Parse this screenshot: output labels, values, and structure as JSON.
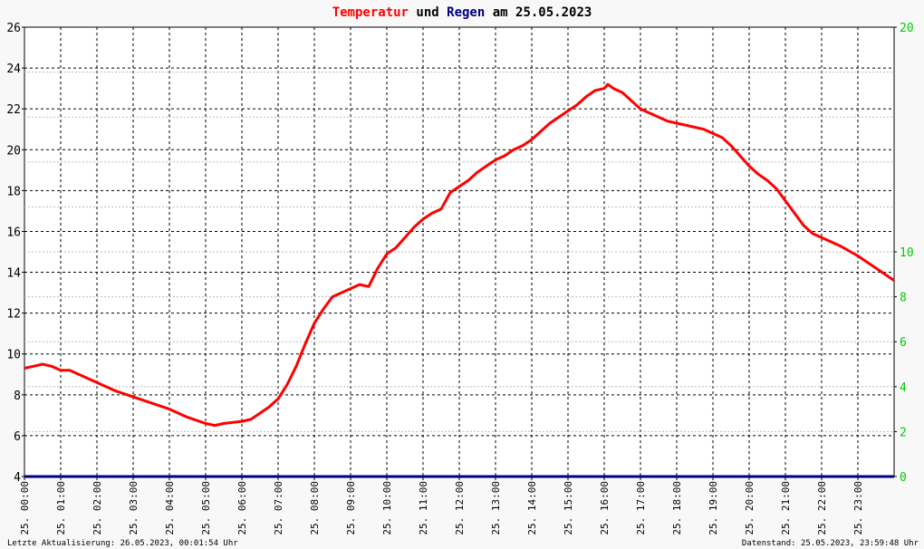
{
  "colors": {
    "temperature": "#ff0000",
    "rain": "#000080",
    "left_axis_text": "#000000",
    "right_axis_text": "#00cc00",
    "grid": "#000000",
    "background": "#ffffff",
    "page": "#f8f8f8"
  },
  "chart_data": {
    "type": "line",
    "title": "",
    "title_parts": [
      {
        "text": "Temperatur",
        "color": "#ff0000"
      },
      {
        "text": " und ",
        "color": "#000000"
      },
      {
        "text": "Regen",
        "color": "#000080"
      },
      {
        "text": " am 25.05.2023",
        "color": "#000000"
      }
    ],
    "xlabel": "",
    "ylabel": "",
    "x_unit": "hour of day",
    "xlim": [
      0,
      24
    ],
    "ylim": [
      4,
      26
    ],
    "y2lim": [
      0,
      20
    ],
    "yticks": [
      "4",
      "6",
      "8",
      "10",
      "12",
      "14",
      "16",
      "18",
      "20",
      "22",
      "24",
      "26"
    ],
    "y2ticks": [
      "0",
      "2",
      "4",
      "6",
      "8",
      "10",
      "12",
      "14",
      "16",
      "18",
      "20"
    ],
    "y2ticks_visible": [
      "0",
      "2",
      "4",
      "6",
      "8",
      "10",
      "20"
    ],
    "xtick_labels": [
      "25. 00:00",
      "25. 01:00",
      "25. 02:00",
      "25. 03:00",
      "25. 04:00",
      "25. 05:00",
      "25. 06:00",
      "25. 07:00",
      "25. 08:00",
      "25. 09:00",
      "25. 10:00",
      "25. 11:00",
      "25. 12:00",
      "25. 13:00",
      "25. 14:00",
      "25. 15:00",
      "25. 16:00",
      "25. 17:00",
      "25. 18:00",
      "25. 19:00",
      "25. 20:00",
      "25. 21:00",
      "25. 22:00",
      "25. 23:00"
    ],
    "grid": true,
    "series": [
      {
        "name": "Temperatur",
        "axis": "left",
        "x": [
          0.0,
          0.25,
          0.5,
          0.75,
          1.0,
          1.25,
          1.5,
          2.0,
          2.5,
          3.0,
          3.5,
          4.0,
          4.5,
          5.0,
          5.25,
          5.5,
          6.0,
          6.25,
          6.5,
          6.75,
          7.0,
          7.25,
          7.5,
          7.75,
          8.0,
          8.25,
          8.5,
          8.75,
          9.0,
          9.25,
          9.5,
          9.75,
          10.0,
          10.25,
          10.5,
          10.75,
          11.0,
          11.25,
          11.5,
          11.75,
          12.0,
          12.25,
          12.5,
          12.75,
          13.0,
          13.25,
          13.5,
          13.75,
          14.0,
          14.25,
          14.5,
          14.75,
          15.0,
          15.25,
          15.5,
          15.75,
          16.0,
          16.1,
          16.25,
          16.5,
          16.75,
          17.0,
          17.25,
          17.5,
          17.75,
          18.0,
          18.25,
          18.5,
          18.75,
          19.0,
          19.25,
          19.5,
          19.75,
          20.0,
          20.25,
          20.5,
          20.75,
          21.0,
          21.25,
          21.5,
          21.75,
          22.0,
          22.5,
          23.0,
          23.5,
          24.0
        ],
        "values": [
          9.3,
          9.4,
          9.5,
          9.4,
          9.2,
          9.2,
          9.0,
          8.6,
          8.2,
          7.9,
          7.6,
          7.3,
          6.9,
          6.6,
          6.5,
          6.6,
          6.7,
          6.8,
          7.1,
          7.4,
          7.8,
          8.5,
          9.4,
          10.5,
          11.5,
          12.2,
          12.8,
          13.0,
          13.2,
          13.4,
          13.3,
          14.2,
          14.9,
          15.2,
          15.7,
          16.2,
          16.6,
          16.9,
          17.1,
          17.9,
          18.2,
          18.5,
          18.9,
          19.2,
          19.5,
          19.7,
          20.0,
          20.2,
          20.5,
          20.9,
          21.3,
          21.6,
          21.9,
          22.2,
          22.6,
          22.9,
          23.0,
          23.2,
          23.0,
          22.8,
          22.4,
          22.0,
          21.8,
          21.6,
          21.4,
          21.3,
          21.2,
          21.1,
          21.0,
          20.8,
          20.6,
          20.2,
          19.7,
          19.2,
          18.8,
          18.5,
          18.1,
          17.5,
          16.9,
          16.3,
          15.9,
          15.7,
          15.3,
          14.8,
          14.2,
          13.6
        ]
      },
      {
        "name": "Regen",
        "axis": "right",
        "x": [
          0,
          24
        ],
        "values": [
          0,
          0
        ]
      }
    ]
  },
  "footer": {
    "left": "Letzte Aktualisierung: 26.05.2023, 00:01:54 Uhr",
    "right": "Datenstand: 25.05.2023, 23:59:48 Uhr"
  }
}
